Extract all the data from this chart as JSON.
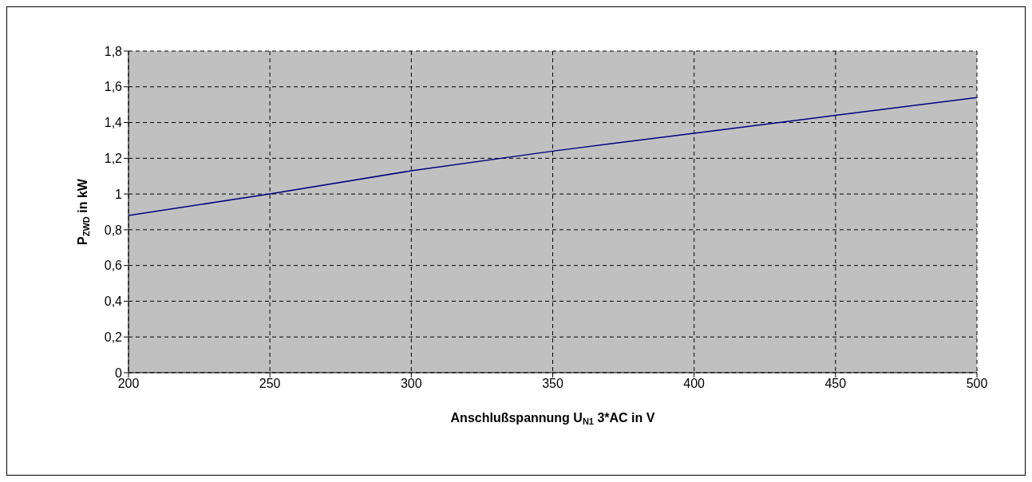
{
  "chart_data": {
    "type": "line",
    "xlabel": "Anschlußspannung U$_{N1}$ 3*AC in V",
    "ylabel": "P$_{ZWD}$ in kW",
    "x": [
      200,
      250,
      300,
      350,
      400,
      450,
      500
    ],
    "series": [
      {
        "color": "#000080",
        "values": [
          0.88,
          1.0,
          1.13,
          1.24,
          1.34,
          1.44,
          1.54
        ]
      }
    ],
    "xlim": [
      200,
      500
    ],
    "xticks": [
      200,
      250,
      300,
      350,
      400,
      450,
      500
    ],
    "ylim": [
      0,
      1.8
    ],
    "yticks": [
      0,
      {
        "value": 0.2,
        "label": "0,2"
      },
      {
        "value": 0.4,
        "label": "0,4"
      },
      {
        "value": 0.6,
        "label": "0,6"
      },
      {
        "value": 0.8,
        "label": "0,8"
      },
      1,
      {
        "value": 1.2,
        "label": "1,2"
      },
      {
        "value": 1.4,
        "label": "1,4"
      },
      {
        "value": 1.6,
        "label": "1,6"
      },
      {
        "value": 1.8,
        "label": "1,8"
      }
    ],
    "grid": true,
    "legend": false,
    "marker": "none",
    "line_style": "solid"
  }
}
